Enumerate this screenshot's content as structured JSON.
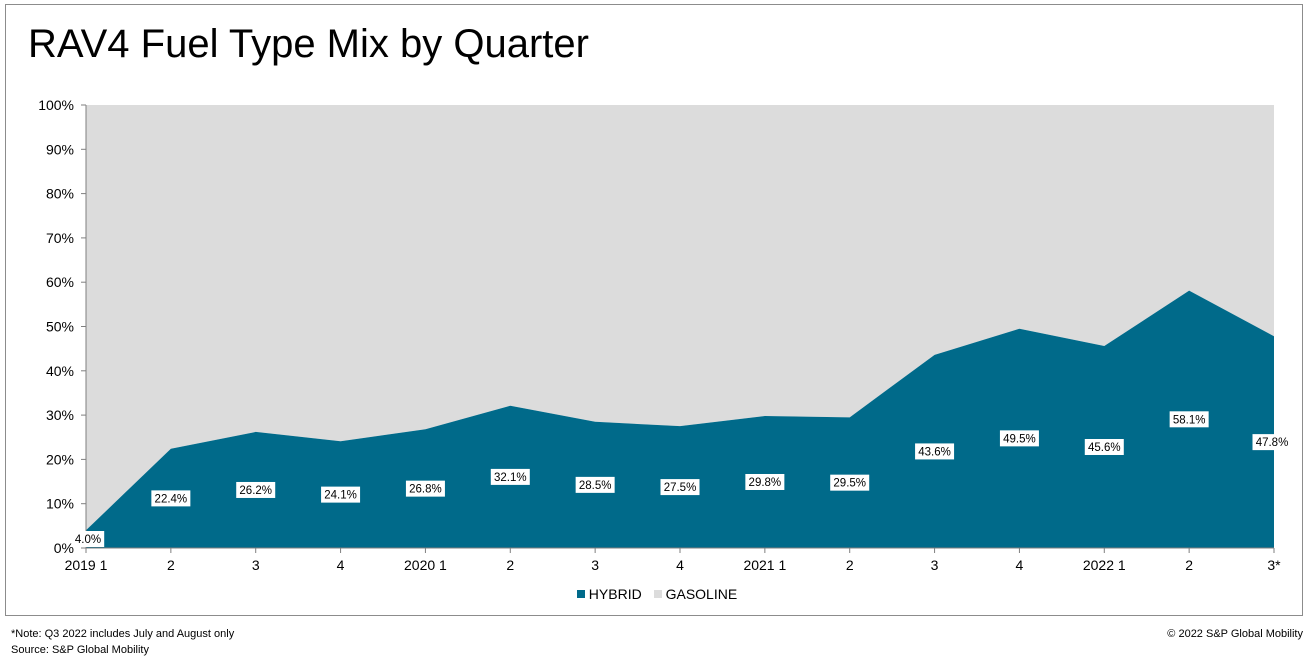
{
  "title": "RAV4 Fuel Type Mix by Quarter",
  "footnote": {
    "note": "*Note: Q3 2022 includes July and August only",
    "source": "Source: S&P Global Mobility"
  },
  "copyright": "© 2022 S&P Global Mobility",
  "legend": [
    {
      "label": "HYBRID",
      "color": "#006a8a"
    },
    {
      "label": "GASOLINE",
      "color": "#dcdcdc"
    }
  ],
  "chart_data": {
    "type": "area",
    "stacked": true,
    "percent_stacked": true,
    "title": "RAV4 Fuel Type Mix by Quarter",
    "categories": [
      "2019 1",
      "2",
      "3",
      "4",
      "2020 1",
      "2",
      "3",
      "4",
      "2021 1",
      "2",
      "3",
      "4",
      "2022 1",
      "2",
      "3*"
    ],
    "series": [
      {
        "name": "HYBRID",
        "color": "#006a8a",
        "values": [
          4.0,
          22.4,
          26.2,
          24.1,
          26.8,
          32.1,
          28.5,
          27.5,
          29.8,
          29.5,
          43.6,
          49.5,
          45.6,
          58.1,
          47.8
        ]
      },
      {
        "name": "GASOLINE",
        "color": "#dcdcdc",
        "values": [
          96.0,
          77.6,
          73.8,
          75.9,
          73.2,
          67.9,
          71.5,
          72.5,
          70.2,
          70.5,
          56.4,
          50.5,
          54.4,
          41.9,
          52.2
        ]
      }
    ],
    "data_labels": [
      "4.0%",
      "22.4%",
      "26.2%",
      "24.1%",
      "26.8%",
      "32.1%",
      "28.5%",
      "27.5%",
      "29.8%",
      "29.5%",
      "43.6%",
      "49.5%",
      "45.6%",
      "58.1%",
      "47.8%"
    ],
    "yticks": [
      "0%",
      "10%",
      "20%",
      "30%",
      "40%",
      "50%",
      "60%",
      "70%",
      "80%",
      "90%",
      "100%"
    ],
    "ylim": [
      0,
      100
    ],
    "grid": false,
    "legend_position": "bottom"
  }
}
